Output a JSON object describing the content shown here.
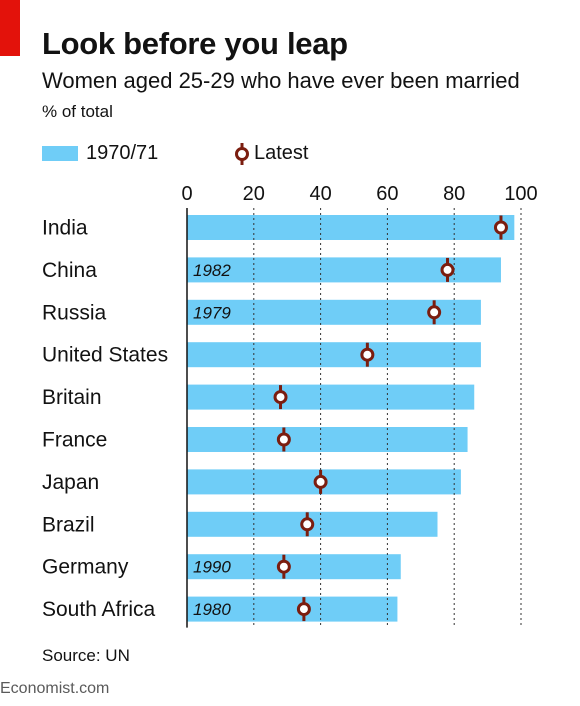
{
  "header": {
    "title": "Look before you leap",
    "subtitle": "Women aged 25-29 who have ever been married",
    "unit": "% of total"
  },
  "legend": {
    "bar_label": "1970/71",
    "marker_label": "Latest"
  },
  "footer": {
    "source": "Source: UN",
    "brand": "Economist.com"
  },
  "colors": {
    "accent_red": "#e3120b",
    "bar": "#6fcdf7",
    "marker": "#7b1d0f",
    "grid": "#333333",
    "text": "#121212"
  },
  "chart_data": {
    "type": "bar",
    "orientation": "horizontal",
    "categories": [
      "India",
      "China",
      "Russia",
      "United States",
      "Britain",
      "France",
      "Japan",
      "Brazil",
      "Germany",
      "South Africa"
    ],
    "series": [
      {
        "name": "1970/71",
        "values": [
          98,
          94,
          88,
          88,
          86,
          84,
          82,
          75,
          64,
          63
        ]
      },
      {
        "name": "Latest",
        "values": [
          94,
          78,
          74,
          54,
          28,
          29,
          40,
          36,
          29,
          35
        ]
      }
    ],
    "bar_annotations": [
      "",
      "1982",
      "1979",
      "",
      "",
      "",
      "",
      "",
      "1990",
      "1980"
    ],
    "xlim": [
      0,
      100
    ],
    "xticks": [
      0,
      20,
      40,
      60,
      80,
      100
    ],
    "grid": true
  }
}
